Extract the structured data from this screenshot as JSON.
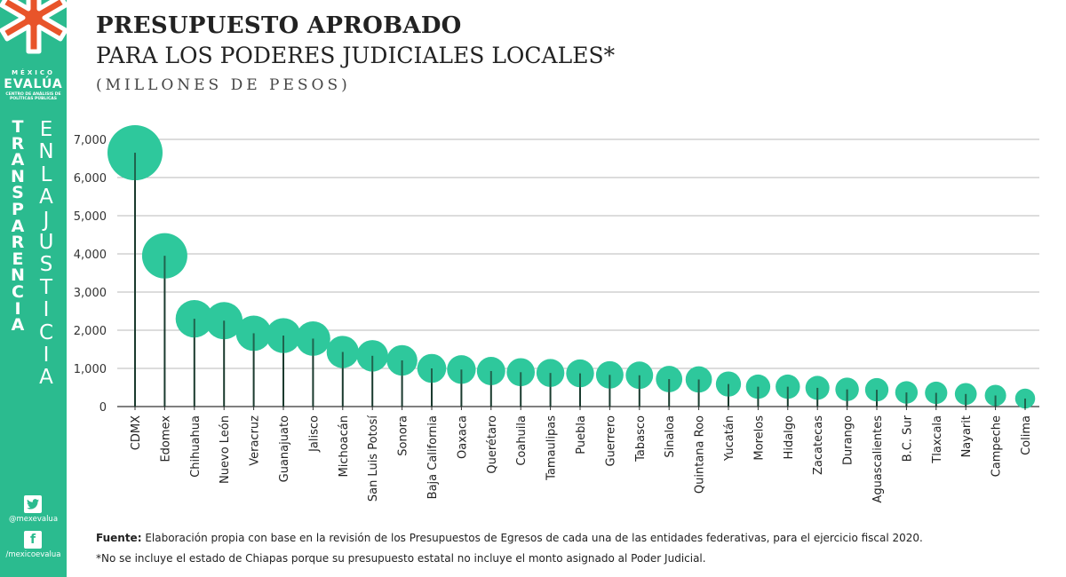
{
  "sidebar": {
    "brand_top": "MÉXICO",
    "brand_name": "EVALÚA",
    "brand_sub": "CENTRO DE ANÁLISIS DE POLÍTICAS PÚBLICAS",
    "vertical_word_1": [
      "T",
      "R",
      "A",
      "N",
      "S",
      "P",
      "A",
      "R",
      "E",
      "N",
      "C",
      "I",
      "A"
    ],
    "vertical_word_2": [
      "E",
      "N",
      "L",
      "A",
      "J",
      "U",
      "S",
      "T",
      "I",
      "C",
      "I",
      "A"
    ],
    "twitter_handle": "@mexevalua",
    "facebook_handle": "/mexicoevalua",
    "accent_color": "#2bbb8f"
  },
  "header": {
    "title_line1": "PRESUPUESTO APROBADO",
    "title_line2": "PARA LOS PODERES JUDICIALES LOCALES*",
    "subtitle": "(MILLONES DE PESOS)"
  },
  "chart_data": {
    "type": "lollipop",
    "title": "PRESUPUESTO APROBADO PARA LOS PODERES JUDICIALES LOCALES*",
    "ylabel": "Millones de pesos",
    "ylim": [
      0,
      7000
    ],
    "yticks": [
      0,
      1000,
      2000,
      3000,
      4000,
      5000,
      6000,
      7000
    ],
    "ytick_labels": [
      "0",
      "1,000",
      "2,000",
      "3,000",
      "4,000",
      "5,000",
      "6,000",
      "7,000"
    ],
    "grid": true,
    "marker_color": "#2ec89c",
    "stem_color": "#1a3a2e",
    "categories": [
      "CDMX",
      "Edomex",
      "Chihuahua",
      "Nuevo León",
      "Veracruz",
      "Guanajuato",
      "Jalisco",
      "Michoacán",
      "San Luis Potosí",
      "Sonora",
      "Baja California",
      "Oaxaca",
      "Querétaro",
      "Coahuila",
      "Tamaulipas",
      "Puebla",
      "Guerrero",
      "Tabasco",
      "Sinaloa",
      "Quintana Roo",
      "Yucatán",
      "Morelos",
      "Hidalgo",
      "Zacatecas",
      "Durango",
      "Aguascalientes",
      "B.C. Sur",
      "Tlaxcala",
      "Nayarit",
      "Campeche",
      "Colima"
    ],
    "values": [
      6650,
      3950,
      2300,
      2250,
      1920,
      1860,
      1780,
      1430,
      1330,
      1210,
      1000,
      970,
      930,
      900,
      880,
      870,
      830,
      820,
      720,
      710,
      590,
      520,
      520,
      490,
      450,
      440,
      370,
      360,
      330,
      290,
      210
    ]
  },
  "footer": {
    "source_label": "Fuente:",
    "source_text": " Elaboración propia con base en la revisión de los Presupuestos de Egresos de cada una de las entidades federativas, para el ejercicio fiscal 2020.",
    "note": "*No se incluye el estado de Chiapas porque su presupuesto estatal no incluye el monto asignado al Poder Judicial."
  }
}
